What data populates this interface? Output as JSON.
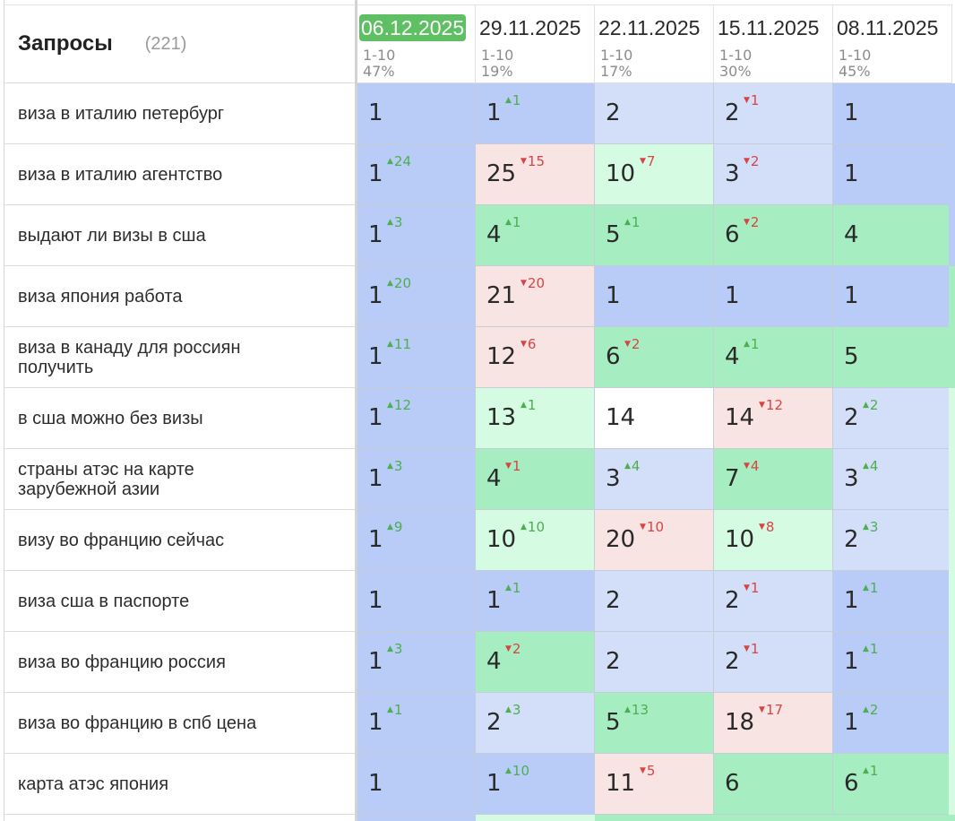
{
  "header": {
    "title": "Запросы",
    "count": "(221)"
  },
  "colors": {
    "blue": "#b9ccf7",
    "light_blue": "#d3def8",
    "green": "#a6eec1",
    "light_green": "#d6fbe3",
    "pink": "#f8e4e2",
    "white": "#ffffff",
    "active_date": "#5fbf63"
  },
  "icons": {
    "up": "arrow-up-icon",
    "down": "arrow-down-icon"
  },
  "dates": [
    {
      "label": "06.12.2025",
      "range": "1-10",
      "pct": "47%",
      "active": true
    },
    {
      "label": "29.11.2025",
      "range": "1-10",
      "pct": "19%"
    },
    {
      "label": "22.11.2025",
      "range": "1-10",
      "pct": "17%"
    },
    {
      "label": "15.11.2025",
      "range": "1-10",
      "pct": "30%"
    },
    {
      "label": "08.11.2025",
      "range": "1-10",
      "pct": "45%"
    }
  ],
  "rows": [
    {
      "query": "виза в италию петербург",
      "cells": [
        {
          "pos": "1",
          "bg": "blue"
        },
        {
          "pos": "1",
          "delta": "1",
          "dir": "up",
          "bg": "blue"
        },
        {
          "pos": "2",
          "bg": "light_blue"
        },
        {
          "pos": "2",
          "delta": "1",
          "dir": "down",
          "bg": "light_blue"
        },
        {
          "pos": "1",
          "bg": "blue"
        }
      ]
    },
    {
      "query": "виза в италию агентство",
      "cells": [
        {
          "pos": "1",
          "delta": "24",
          "dir": "up",
          "bg": "blue"
        },
        {
          "pos": "25",
          "delta": "15",
          "dir": "down",
          "bg": "pink"
        },
        {
          "pos": "10",
          "delta": "7",
          "dir": "down",
          "bg": "light_green"
        },
        {
          "pos": "3",
          "delta": "2",
          "dir": "down",
          "bg": "light_blue"
        },
        {
          "pos": "1",
          "bg": "blue"
        }
      ]
    },
    {
      "query": "выдают ли визы в сша",
      "cells": [
        {
          "pos": "1",
          "delta": "3",
          "dir": "up",
          "bg": "blue"
        },
        {
          "pos": "4",
          "delta": "1",
          "dir": "up",
          "bg": "green"
        },
        {
          "pos": "5",
          "delta": "1",
          "dir": "up",
          "bg": "green"
        },
        {
          "pos": "6",
          "delta": "2",
          "dir": "down",
          "bg": "green"
        },
        {
          "pos": "4",
          "bg": "green"
        }
      ]
    },
    {
      "query": "виза япония работа",
      "cells": [
        {
          "pos": "1",
          "delta": "20",
          "dir": "up",
          "bg": "blue"
        },
        {
          "pos": "21",
          "delta": "20",
          "dir": "down",
          "bg": "pink"
        },
        {
          "pos": "1",
          "bg": "blue"
        },
        {
          "pos": "1",
          "bg": "blue"
        },
        {
          "pos": "1",
          "bg": "blue"
        }
      ]
    },
    {
      "query": "виза в канаду для россиян получить",
      "cells": [
        {
          "pos": "1",
          "delta": "11",
          "dir": "up",
          "bg": "blue"
        },
        {
          "pos": "12",
          "delta": "6",
          "dir": "down",
          "bg": "pink"
        },
        {
          "pos": "6",
          "delta": "2",
          "dir": "down",
          "bg": "green"
        },
        {
          "pos": "4",
          "delta": "1",
          "dir": "up",
          "bg": "green"
        },
        {
          "pos": "5",
          "bg": "green"
        }
      ]
    },
    {
      "query": "в сша можно без визы",
      "cells": [
        {
          "pos": "1",
          "delta": "12",
          "dir": "up",
          "bg": "blue"
        },
        {
          "pos": "13",
          "delta": "1",
          "dir": "up",
          "bg": "light_green"
        },
        {
          "pos": "14",
          "bg": "white"
        },
        {
          "pos": "14",
          "delta": "12",
          "dir": "down",
          "bg": "pink"
        },
        {
          "pos": "2",
          "delta": "2",
          "dir": "up",
          "bg": "light_blue"
        }
      ]
    },
    {
      "query": "страны атэс на карте зарубежной азии",
      "cells": [
        {
          "pos": "1",
          "delta": "3",
          "dir": "up",
          "bg": "blue"
        },
        {
          "pos": "4",
          "delta": "1",
          "dir": "down",
          "bg": "green"
        },
        {
          "pos": "3",
          "delta": "4",
          "dir": "up",
          "bg": "light_blue"
        },
        {
          "pos": "7",
          "delta": "4",
          "dir": "down",
          "bg": "green"
        },
        {
          "pos": "3",
          "delta": "4",
          "dir": "up",
          "bg": "light_blue"
        }
      ]
    },
    {
      "query": "визу во францию сейчас",
      "cells": [
        {
          "pos": "1",
          "delta": "9",
          "dir": "up",
          "bg": "blue"
        },
        {
          "pos": "10",
          "delta": "10",
          "dir": "up",
          "bg": "light_green"
        },
        {
          "pos": "20",
          "delta": "10",
          "dir": "down",
          "bg": "pink"
        },
        {
          "pos": "10",
          "delta": "8",
          "dir": "down",
          "bg": "light_green"
        },
        {
          "pos": "2",
          "delta": "3",
          "dir": "up",
          "bg": "light_blue"
        }
      ]
    },
    {
      "query": "виза сша в паспорте",
      "cells": [
        {
          "pos": "1",
          "bg": "blue"
        },
        {
          "pos": "1",
          "delta": "1",
          "dir": "up",
          "bg": "blue"
        },
        {
          "pos": "2",
          "bg": "light_blue"
        },
        {
          "pos": "2",
          "delta": "1",
          "dir": "down",
          "bg": "light_blue"
        },
        {
          "pos": "1",
          "delta": "1",
          "dir": "up",
          "bg": "blue"
        }
      ]
    },
    {
      "query": "виза во францию россия",
      "cells": [
        {
          "pos": "1",
          "delta": "3",
          "dir": "up",
          "bg": "blue"
        },
        {
          "pos": "4",
          "delta": "2",
          "dir": "down",
          "bg": "green"
        },
        {
          "pos": "2",
          "bg": "light_blue"
        },
        {
          "pos": "2",
          "delta": "1",
          "dir": "down",
          "bg": "light_blue"
        },
        {
          "pos": "1",
          "delta": "1",
          "dir": "up",
          "bg": "blue"
        }
      ]
    },
    {
      "query": "виза во францию в спб цена",
      "cells": [
        {
          "pos": "1",
          "delta": "1",
          "dir": "up",
          "bg": "blue"
        },
        {
          "pos": "2",
          "delta": "3",
          "dir": "up",
          "bg": "light_blue"
        },
        {
          "pos": "5",
          "delta": "13",
          "dir": "up",
          "bg": "green"
        },
        {
          "pos": "18",
          "delta": "17",
          "dir": "down",
          "bg": "pink"
        },
        {
          "pos": "1",
          "delta": "2",
          "dir": "up",
          "bg": "blue"
        }
      ]
    },
    {
      "query": "карта атэс япония",
      "cells": [
        {
          "pos": "1",
          "bg": "blue"
        },
        {
          "pos": "1",
          "delta": "10",
          "dir": "up",
          "bg": "blue"
        },
        {
          "pos": "11",
          "delta": "5",
          "dir": "down",
          "bg": "pink"
        },
        {
          "pos": "6",
          "bg": "green"
        },
        {
          "pos": "6",
          "delta": "1",
          "dir": "up",
          "bg": "green"
        }
      ]
    }
  ]
}
